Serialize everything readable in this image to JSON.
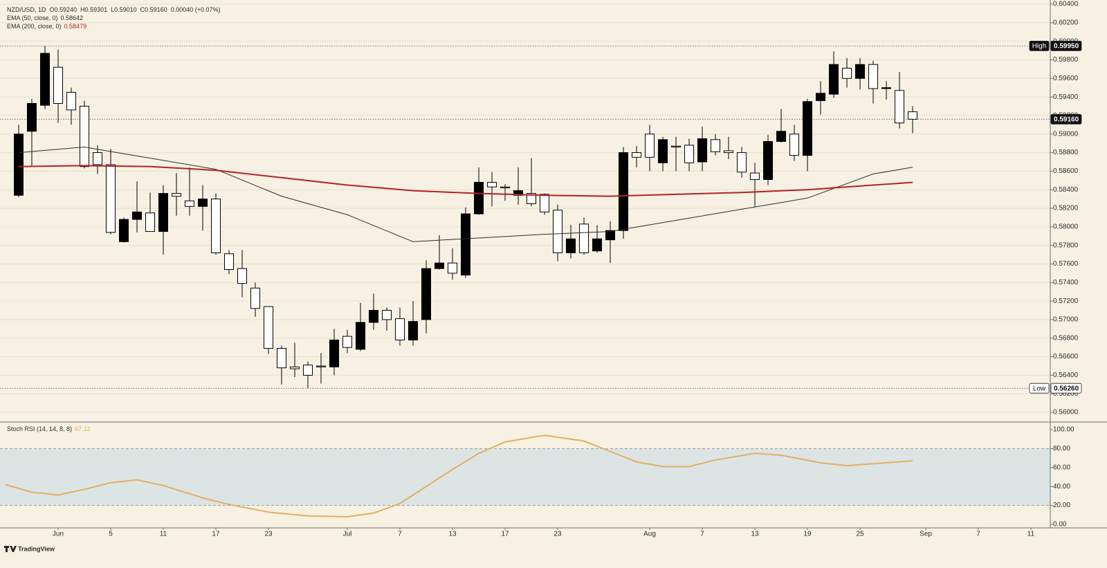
{
  "chart_data": [
    {
      "type": "candlestick",
      "legend": {
        "symbol": "NZD/USD, 1D",
        "items": [
          "O0.59240",
          "H0.59301",
          "L0.59010",
          "C0.59160",
          "0.00040 (+0.07%)"
        ]
      },
      "x": [
        0,
        1,
        2,
        3,
        4,
        5,
        6,
        7,
        8,
        9,
        10,
        11,
        12,
        13,
        14,
        15,
        16,
        17,
        18,
        19,
        20,
        21,
        22,
        23,
        24,
        25,
        26,
        27,
        28,
        29,
        30,
        31,
        32,
        33,
        34,
        35,
        36,
        37,
        38,
        39,
        40,
        41,
        42,
        43,
        44,
        45,
        46,
        47,
        48,
        49,
        50,
        51,
        52,
        53,
        54,
        55,
        56,
        57,
        58,
        59,
        60,
        61,
        62,
        63,
        64,
        65,
        66,
        67,
        68
      ],
      "open": [
        0.5834,
        0.5903,
        0.5931,
        0.5972,
        0.5945,
        0.593,
        0.588,
        0.5867,
        0.5784,
        0.5808,
        0.5815,
        0.5795,
        0.5836,
        0.5828,
        0.5822,
        0.583,
        0.5771,
        0.5755,
        0.5734,
        0.5714,
        0.5669,
        0.5649,
        0.5651,
        0.565,
        0.5649,
        0.5682,
        0.5668,
        0.5697,
        0.571,
        0.5701,
        0.5678,
        0.57,
        0.5755,
        0.5761,
        0.5748,
        0.5814,
        0.5848,
        0.5843,
        0.5834,
        0.5836,
        0.5835,
        0.5818,
        0.5772,
        0.5803,
        0.5774,
        0.5786,
        0.5796,
        0.588,
        0.59,
        0.5869,
        0.5887,
        0.5888,
        0.587,
        0.5894,
        0.5882,
        0.588,
        0.5858,
        0.5851,
        0.5892,
        0.59,
        0.5877,
        0.5936,
        0.5943,
        0.5971,
        0.596,
        0.5975,
        0.5949,
        0.5947,
        0.5924
      ],
      "high": [
        0.591,
        0.5938,
        0.5995,
        0.5991,
        0.595,
        0.5936,
        0.5888,
        0.5884,
        0.581,
        0.5849,
        0.5837,
        0.5845,
        0.5858,
        0.5864,
        0.5845,
        0.5836,
        0.5775,
        0.5775,
        0.574,
        0.5714,
        0.5672,
        0.5675,
        0.5655,
        0.5664,
        0.569,
        0.5689,
        0.5718,
        0.5728,
        0.5713,
        0.5713,
        0.572,
        0.5764,
        0.5791,
        0.5777,
        0.5821,
        0.5864,
        0.5859,
        0.5846,
        0.5864,
        0.5874,
        0.5836,
        0.5824,
        0.5802,
        0.581,
        0.5802,
        0.5806,
        0.5886,
        0.5887,
        0.591,
        0.5897,
        0.5897,
        0.5895,
        0.5908,
        0.59,
        0.5897,
        0.5886,
        0.5869,
        0.5899,
        0.5927,
        0.591,
        0.5938,
        0.5957,
        0.5989,
        0.5982,
        0.5982,
        0.5979,
        0.5957,
        0.5967,
        0.59301
      ],
      "low": [
        0.5832,
        0.5865,
        0.5927,
        0.5912,
        0.591,
        0.5863,
        0.5857,
        0.5792,
        0.5783,
        0.5794,
        0.5795,
        0.577,
        0.5812,
        0.5812,
        0.5796,
        0.577,
        0.5749,
        0.5724,
        0.5703,
        0.5663,
        0.563,
        0.5638,
        0.5626,
        0.5631,
        0.564,
        0.5664,
        0.5666,
        0.5689,
        0.5688,
        0.5672,
        0.5672,
        0.5685,
        0.5754,
        0.5743,
        0.5745,
        0.5813,
        0.5822,
        0.5828,
        0.5824,
        0.5822,
        0.5813,
        0.5763,
        0.5766,
        0.577,
        0.5772,
        0.5761,
        0.5787,
        0.5864,
        0.586,
        0.586,
        0.586,
        0.586,
        0.586,
        0.5877,
        0.5873,
        0.5853,
        0.5822,
        0.5845,
        0.5891,
        0.5871,
        0.586,
        0.5921,
        0.5939,
        0.595,
        0.5948,
        0.5933,
        0.5937,
        0.5906,
        0.5901
      ],
      "close": [
        0.59,
        0.5933,
        0.5987,
        0.5933,
        0.5926,
        0.5865,
        0.5867,
        0.5794,
        0.5808,
        0.5816,
        0.5795,
        0.5836,
        0.5833,
        0.5822,
        0.583,
        0.5772,
        0.5754,
        0.5739,
        0.5712,
        0.5669,
        0.5648,
        0.5647,
        0.564,
        0.5649,
        0.5678,
        0.567,
        0.5697,
        0.571,
        0.57,
        0.5678,
        0.5698,
        0.5755,
        0.5761,
        0.575,
        0.5814,
        0.5848,
        0.5843,
        0.5842,
        0.5839,
        0.5825,
        0.5816,
        0.5772,
        0.5787,
        0.5772,
        0.5787,
        0.5796,
        0.588,
        0.5875,
        0.5875,
        0.5894,
        0.5886,
        0.5869,
        0.5895,
        0.5881,
        0.588,
        0.5859,
        0.5851,
        0.5892,
        0.5903,
        0.5877,
        0.5935,
        0.5944,
        0.5975,
        0.596,
        0.5975,
        0.5949,
        0.595,
        0.5912,
        0.5916
      ],
      "up_color": "#000000",
      "down_color": "#ffffff",
      "wick_color": "#000000",
      "series": [
        {
          "name": "EMA (50, close, 0)",
          "value_label": "0.58642",
          "color": "#2b2b2b",
          "x": [
            0,
            5,
            10,
            15,
            20,
            25,
            30,
            35,
            40,
            45,
            50,
            55,
            60,
            65,
            68
          ],
          "values": [
            0.588,
            0.5886,
            0.5874,
            0.5862,
            0.5833,
            0.5813,
            0.5784,
            0.5788,
            0.5792,
            0.5795,
            0.5807,
            0.5819,
            0.5831,
            0.5857,
            0.58642
          ]
        },
        {
          "name": "EMA (200, close, 0)",
          "value_label": "0.58479",
          "color": "#b22222",
          "x": [
            0,
            5,
            10,
            15,
            20,
            25,
            30,
            35,
            40,
            45,
            50,
            55,
            60,
            65,
            68
          ],
          "values": [
            0.5865,
            0.5866,
            0.5865,
            0.5861,
            0.5853,
            0.5845,
            0.5839,
            0.5836,
            0.5834,
            0.5833,
            0.5835,
            0.5837,
            0.584,
            0.5845,
            0.58479
          ]
        }
      ],
      "high_marker": {
        "label": "High",
        "value": 0.5995,
        "value_label": "0.59950"
      },
      "low_marker": {
        "label": "Low",
        "value": 0.5626,
        "value_label": "0.56260"
      },
      "last_price": {
        "value": 0.5916,
        "value_label": "0.59160"
      },
      "xlim": [
        -1.42,
        78.47
      ],
      "xticks": [
        {
          "value": 3,
          "label": "Jun"
        },
        {
          "value": 7,
          "label": "5"
        },
        {
          "value": 11,
          "label": "11"
        },
        {
          "value": 15,
          "label": "17"
        },
        {
          "value": 19,
          "label": "23"
        },
        {
          "value": 25,
          "label": "Jul"
        },
        {
          "value": 29,
          "label": "7"
        },
        {
          "value": 33,
          "label": "13"
        },
        {
          "value": 37,
          "label": "17"
        },
        {
          "value": 41,
          "label": "23"
        },
        {
          "value": 48,
          "label": "Aug"
        },
        {
          "value": 52,
          "label": "7"
        },
        {
          "value": 56,
          "label": "13"
        },
        {
          "value": 60,
          "label": "19"
        },
        {
          "value": 64,
          "label": "25"
        },
        {
          "value": 69,
          "label": "Sep"
        },
        {
          "value": 73,
          "label": "7"
        },
        {
          "value": 77,
          "label": "11"
        }
      ],
      "ylim": [
        0.55896,
        0.60445
      ],
      "yticks": [
        {
          "value": 0.604,
          "label": "0.60400"
        },
        {
          "value": 0.602,
          "label": "0.60200"
        },
        {
          "value": 0.6,
          "label": "0.60000"
        },
        {
          "value": 0.598,
          "label": "0.59800"
        },
        {
          "value": 0.596,
          "label": "0.59600"
        },
        {
          "value": 0.594,
          "label": "0.59400"
        },
        {
          "value": 0.592,
          "label": "0.59200"
        },
        {
          "value": 0.59,
          "label": "0.59000"
        },
        {
          "value": 0.588,
          "label": "0.58800"
        },
        {
          "value": 0.586,
          "label": "0.58600"
        },
        {
          "value": 0.584,
          "label": "0.58400"
        },
        {
          "value": 0.582,
          "label": "0.58200"
        },
        {
          "value": 0.58,
          "label": "0.58000"
        },
        {
          "value": 0.578,
          "label": "0.57800"
        },
        {
          "value": 0.576,
          "label": "0.57600"
        },
        {
          "value": 0.574,
          "label": "0.57400"
        },
        {
          "value": 0.572,
          "label": "0.57200"
        },
        {
          "value": 0.57,
          "label": "0.57000"
        },
        {
          "value": 0.568,
          "label": "0.56800"
        },
        {
          "value": 0.566,
          "label": "0.56600"
        },
        {
          "value": 0.564,
          "label": "0.56400"
        },
        {
          "value": 0.562,
          "label": "0.56200"
        },
        {
          "value": 0.56,
          "label": "0.56000"
        }
      ],
      "grid": true
    },
    {
      "type": "line",
      "series": [
        {
          "name": "Stoch RSI (14, 14, 8, 8)",
          "value_label": "67.12",
          "color": "#e0b062",
          "x": [
            -1,
            1,
            3,
            5,
            7,
            9,
            11,
            14,
            16,
            19,
            22,
            25,
            27,
            29,
            31,
            33,
            35,
            37,
            40,
            43,
            45,
            47,
            49,
            51,
            53,
            56,
            58,
            61,
            63,
            65,
            68
          ],
          "values": [
            42,
            34,
            31,
            37,
            44,
            47,
            41,
            28,
            21,
            13,
            9,
            8,
            12,
            22,
            40,
            58,
            75,
            87,
            94,
            88,
            77,
            66,
            61,
            61,
            68,
            75,
            73,
            65,
            62,
            64,
            67.12
          ]
        }
      ],
      "band": [
        20,
        80
      ],
      "band_color": "#dde4e4",
      "xlim": [
        -1.42,
        78.47
      ],
      "ylim": [
        -3.65,
        108.03
      ],
      "yticks": [
        {
          "value": 100,
          "label": "100.00"
        },
        {
          "value": 80,
          "label": "80.00"
        },
        {
          "value": 60,
          "label": "60.00"
        },
        {
          "value": 40,
          "label": "40.00"
        },
        {
          "value": 20,
          "label": "20.00"
        },
        {
          "value": 0,
          "label": "0.00"
        }
      ],
      "grid": false
    }
  ],
  "footer": "TradingView"
}
